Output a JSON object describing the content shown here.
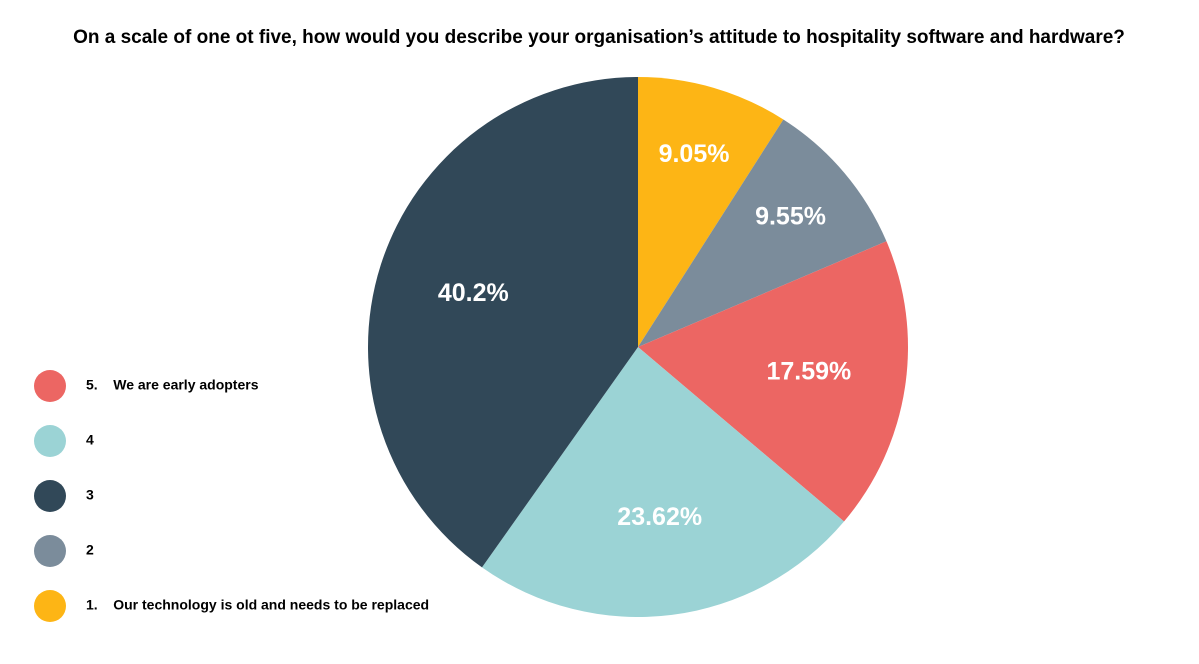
{
  "chart_data": {
    "type": "pie",
    "title": "On a scale of one ot five, how would you describe your organisation’s attitude to hospitality software and hardware?",
    "categories": [
      "5.    We are early adopters",
      "4",
      "3",
      "2",
      "1.    Our technology is old and needs to be replaced"
    ],
    "values": [
      17.59,
      23.62,
      40.2,
      9.55,
      9.05
    ],
    "value_labels": [
      "17.59%",
      "23.62%",
      "40.2%",
      "9.55%",
      "9.05%"
    ],
    "colors": [
      "#ec6663",
      "#9bd3d5",
      "#314858",
      "#7b8c9b",
      "#fdb515"
    ]
  }
}
